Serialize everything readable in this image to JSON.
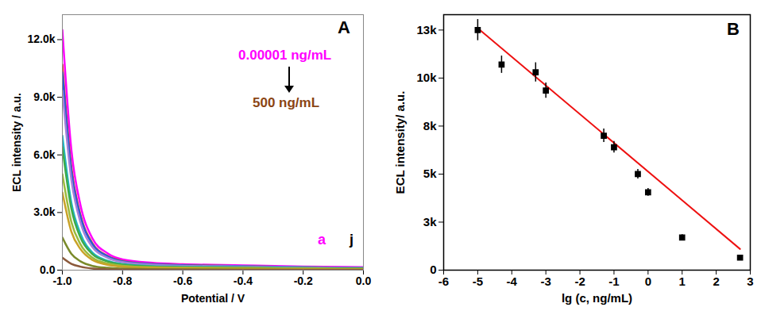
{
  "chart_data": [
    {
      "type": "line",
      "panel": "A",
      "x_label": "Potential / V",
      "y_label": "ECL intensity / a.u.",
      "x": [
        -1.0,
        -0.97,
        -0.94,
        -0.9,
        -0.85,
        -0.8,
        -0.7,
        -0.6,
        -0.4,
        -0.2,
        0.0
      ],
      "xlim": [
        -1.0,
        0.0
      ],
      "xticks": [
        {
          "value": -1.0,
          "label": "-1.0"
        },
        {
          "value": -0.8,
          "label": "-0.8"
        },
        {
          "value": -0.6,
          "label": "-0.6"
        },
        {
          "value": -0.4,
          "label": "-0.4"
        },
        {
          "value": -0.2,
          "label": "-0.2"
        },
        {
          "value": 0,
          "label": "0.0"
        }
      ],
      "ylim": [
        0,
        13300
      ],
      "yticks": [
        {
          "value": 0,
          "label": "0.0"
        },
        {
          "value": 3000,
          "label": "3.0k"
        },
        {
          "value": 6000,
          "label": "6.0k"
        },
        {
          "value": 9000,
          "label": "9.0k"
        },
        {
          "value": 12000,
          "label": "12.0k"
        }
      ],
      "grid": false,
      "annotations": [
        {
          "text": "0.00001 ng/mL",
          "color": "#ff00ff"
        },
        {
          "text": "500 ng/mL",
          "color": "#8b4513"
        }
      ],
      "series": [
        {
          "name": "a",
          "color": "#ff00ff",
          "values": [
            12500,
            6250,
            3400,
            1650,
            880,
            560,
            380,
            310,
            250,
            190,
            150
          ]
        },
        {
          "color": "#e8413c",
          "values": [
            10700,
            5350,
            2900,
            1400,
            750,
            480,
            320,
            270,
            210,
            160,
            130
          ]
        },
        {
          "color": "#1f5fd6",
          "values": [
            10300,
            5150,
            2800,
            1350,
            720,
            460,
            310,
            260,
            210,
            150,
            120
          ]
        },
        {
          "color": "#a57fd8",
          "values": [
            9350,
            4700,
            2500,
            1200,
            650,
            420,
            280,
            230,
            190,
            140,
            110
          ]
        },
        {
          "color": "#22b5c6",
          "values": [
            7000,
            3500,
            1900,
            910,
            490,
            320,
            210,
            180,
            140,
            110,
            90
          ]
        },
        {
          "color": "#3daa4a",
          "values": [
            6400,
            3200,
            1700,
            830,
            450,
            290,
            190,
            160,
            130,
            100,
            80
          ]
        },
        {
          "color": "#9aba3c",
          "values": [
            5000,
            2500,
            1350,
            650,
            350,
            230,
            150,
            130,
            100,
            80,
            60
          ]
        },
        {
          "color": "#c9a227",
          "values": [
            4050,
            2000,
            1100,
            530,
            280,
            180,
            120,
            100,
            80,
            60,
            50
          ]
        },
        {
          "color": "#7a8a2a",
          "values": [
            1700,
            850,
            460,
            220,
            120,
            80,
            50,
            40,
            35,
            25,
            20
          ]
        },
        {
          "name": "j",
          "color": "#8b5a3c",
          "values": [
            650,
            330,
            180,
            85,
            45,
            30,
            20,
            16,
            13,
            10,
            8
          ]
        }
      ]
    },
    {
      "type": "scatter",
      "panel": "B",
      "x_label": "lg (c, ng/mL)",
      "y_label": "ECL intensity/ a.u.",
      "x": [
        -5,
        -4.3,
        -3.3,
        -3,
        -1.3,
        -1,
        -0.3,
        0,
        1,
        2.7
      ],
      "values": [
        12500,
        10700,
        10300,
        9350,
        7000,
        6400,
        5000,
        4050,
        1700,
        650
      ],
      "errors": [
        550,
        450,
        500,
        400,
        350,
        300,
        250,
        200,
        150,
        100
      ],
      "color": "#000000",
      "marker": "square",
      "fit_line": {
        "color": "#ee1111",
        "x": [
          -5,
          2.7
        ],
        "y": [
          12600,
          1100
        ]
      },
      "xlim": [
        -6,
        3
      ],
      "xticks": [
        -6,
        -5,
        -4,
        -3,
        -2,
        -1,
        0,
        1,
        2,
        3
      ],
      "ylim": [
        0,
        13300
      ],
      "yticks": [
        0,
        {
          "value": 2500,
          "label": "3k"
        },
        {
          "value": 5000,
          "label": "5k"
        },
        {
          "value": 7500,
          "label": "8k"
        },
        {
          "value": 10000,
          "label": "10k"
        },
        {
          "value": 12500,
          "label": "13k"
        }
      ],
      "grid": false
    }
  ]
}
